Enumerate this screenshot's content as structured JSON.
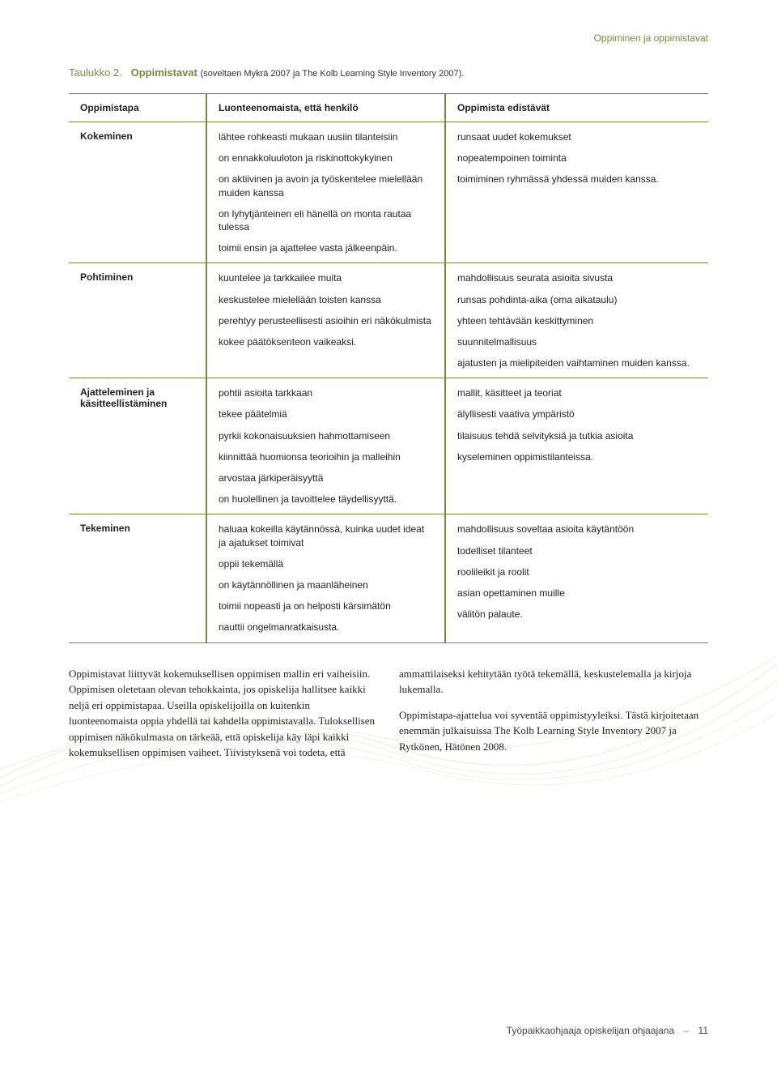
{
  "colors": {
    "accent": "#7a8a3a",
    "text": "#222222",
    "background": "#ffffff",
    "curve": "#c9d2a0"
  },
  "header": {
    "running": "Oppiminen ja oppimistavat"
  },
  "caption": {
    "label": "Taulukko 2.",
    "title": "Oppimistavat",
    "sub": "(soveltaen Mykrä 2007 ja The Kolb Learning Style Inventory 2007)."
  },
  "table": {
    "columns": [
      "Oppimistapa",
      "Luonteenomaista, että henkilö",
      "Oppimista edistävät"
    ],
    "rows": [
      {
        "label": "Kokeminen",
        "col2": [
          "lähtee rohkeasti mukaan uusiin tilanteisiin",
          "on ennakkoluuloton ja riskinottokykyinen",
          "on aktiivinen ja avoin ja työskentelee mielellään muiden kanssa",
          "on lyhytjänteinen eli hänellä on monta rautaa tulessa",
          "toimii ensin ja ajattelee vasta jälkeenpäin."
        ],
        "col3": [
          "runsaat uudet kokemukset",
          "nopeatempoinen toiminta",
          "toimiminen ryhmässä yhdessä muiden kanssa."
        ]
      },
      {
        "label": "Pohtiminen",
        "col2": [
          "kuuntelee ja tarkkailee muita",
          "keskustelee mielellään toisten kanssa",
          "perehtyy perusteellisesti asioihin eri näkökulmista",
          "kokee päätöksenteon vaikeaksi."
        ],
        "col3": [
          "mahdollisuus seurata asioita sivusta",
          "runsas pohdinta-aika (oma aikataulu)",
          "yhteen tehtävään keskittyminen",
          "suunnitelmallisuus",
          "ajatusten ja mielipiteiden vaihtaminen muiden kanssa."
        ]
      },
      {
        "label": "Ajatteleminen ja käsitteellistäminen",
        "col2": [
          "pohtii asioita tarkkaan",
          "tekee päätelmiä",
          "pyrkii kokonaisuuksien hahmottamiseen",
          "kiinnittää huomionsa teorioihin ja malleihin",
          "arvostaa järkiperäisyyttä",
          "on huolellinen ja tavoittelee täydellisyyttä."
        ],
        "col3": [
          "mallit, käsitteet ja teoriat",
          "älyllisesti vaativa ympäristö",
          "tilaisuus tehdä selvityksiä ja tutkia asioita",
          "kyseleminen oppimistilanteissa."
        ]
      },
      {
        "label": "Tekeminen",
        "col2": [
          "haluaa kokeilla käytännössä, kuinka uudet ideat ja ajatukset toimivat",
          "oppii tekemällä",
          "on käytännöllinen ja maanläheinen",
          "toimii nopeasti ja on helposti kärsimätön",
          "nauttii ongelmanratkaisusta."
        ],
        "col3": [
          "mahdollisuus soveltaa asioita käytäntöön",
          "todelliset tilanteet",
          "roolileikit ja roolit",
          "asian opettaminen muille",
          "välitön palaute."
        ]
      }
    ]
  },
  "body": {
    "left": "Oppimistavat liittyvät kokemuksellisen oppimisen mallin eri vaiheisiin. Oppimisen oletetaan olevan tehokkainta, jos opiskelija hallitsee kaikki neljä eri oppimistapaa. Useilla opiskelijoilla on kuitenkin luonteenomaista oppia yhdellä tai kahdella oppimistavalla. Tuloksellisen oppimisen näkökulmasta on tärkeää, että opiskelija käy läpi kaikki kokemuksellisen oppimisen vaiheet. Tiivistyksenä voi todeta, että",
    "right": "ammattilaiseksi kehitytään työtä tekemällä, keskustelemalla ja kirjoja lukemalla.\n\nOppimistapa-ajattelua voi syventää oppimistyyleiksi. Tästä kirjoitetaan enemmän julkaisuissa The Kolb Learning Style Inventory 2007 ja Rytkönen, Hätönen 2008."
  },
  "footer": {
    "title": "Työpaikkaohjaaja opiskelijan ohjaajana",
    "page": "11"
  }
}
